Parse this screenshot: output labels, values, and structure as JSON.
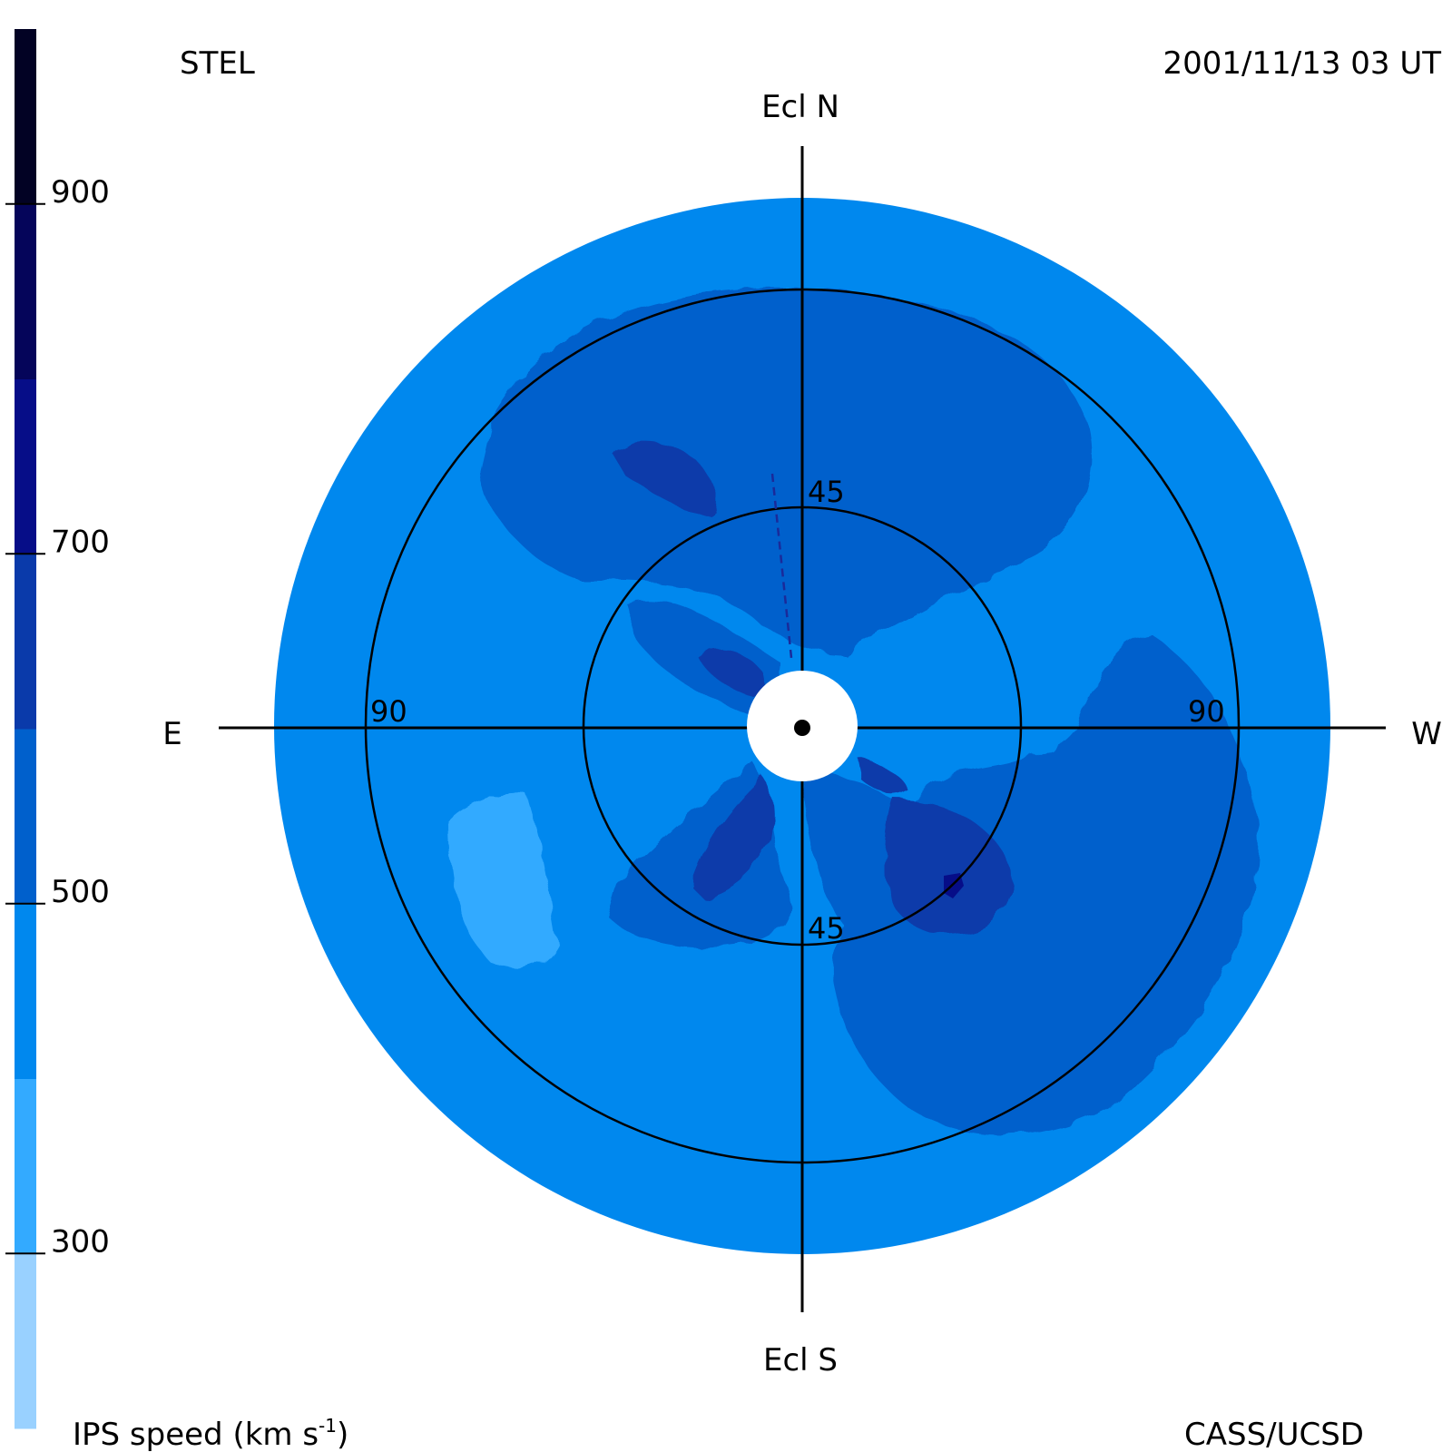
{
  "header": {
    "source": "STEL",
    "timestamp": "2001/11/13 03 UT"
  },
  "footer": {
    "colorbar_label_main": "IPS speed (km s",
    "colorbar_label_sup": "-1",
    "colorbar_label_close": ")",
    "credit": "CASS/UCSD"
  },
  "directions": {
    "north": "Ecl N",
    "south": "Ecl S",
    "east": "E",
    "west": "W"
  },
  "chart_data": {
    "type": "heatmap",
    "title": "",
    "projection": "fisheye sky map centered on the Sun",
    "colorbar": {
      "label": "IPS speed (km s-1)",
      "range": [
        200,
        1000
      ],
      "levels": [
        {
          "from": 200,
          "to": 300,
          "color": "#99d1ff"
        },
        {
          "from": 300,
          "to": 400,
          "color": "#33aaff"
        },
        {
          "from": 400,
          "to": 500,
          "color": "#0088ee"
        },
        {
          "from": 500,
          "to": 600,
          "color": "#0060cc"
        },
        {
          "from": 600,
          "to": 700,
          "color": "#0a3aaa"
        },
        {
          "from": 700,
          "to": 800,
          "color": "#060d88"
        },
        {
          "from": 800,
          "to": 900,
          "color": "#05055a"
        },
        {
          "from": 900,
          "to": 1000,
          "color": "#020224"
        }
      ],
      "ticks": [
        {
          "value": 300,
          "label": "300"
        },
        {
          "value": 500,
          "label": "500"
        },
        {
          "value": 700,
          "label": "700"
        },
        {
          "value": 900,
          "label": "900"
        }
      ]
    },
    "elongation_circles": [
      {
        "elongation": 45,
        "labels": [
          "45",
          "45"
        ]
      },
      {
        "elongation": 90,
        "labels": [
          "90",
          "90"
        ]
      }
    ],
    "outer_elongation": 120,
    "sun_occulter_elongation": 10,
    "background_speed": 450,
    "regions": [
      {
        "name": "northern-slow-arc",
        "speed": 550,
        "elong": 85,
        "pa": 10
      },
      {
        "name": "north-east-fast-spot",
        "speed": 650,
        "elong": 75,
        "pa": 28
      },
      {
        "name": "near-sun-fast-spot",
        "speed": 650,
        "elong": 20,
        "pa": 45
      },
      {
        "name": "east-slow-patch",
        "speed": 350,
        "elong": 90,
        "pa": 130
      },
      {
        "name": "south-east-slow-ray",
        "speed": 550,
        "elong": 40,
        "pa": 150
      },
      {
        "name": "west-slow-region",
        "speed": 550,
        "elong": 80,
        "pa": 290
      },
      {
        "name": "south-west-fast-spot",
        "speed": 650,
        "elong": 45,
        "pa": 225
      },
      {
        "name": "south-west-peak",
        "speed": 750,
        "elong": 55,
        "pa": 220
      }
    ]
  }
}
